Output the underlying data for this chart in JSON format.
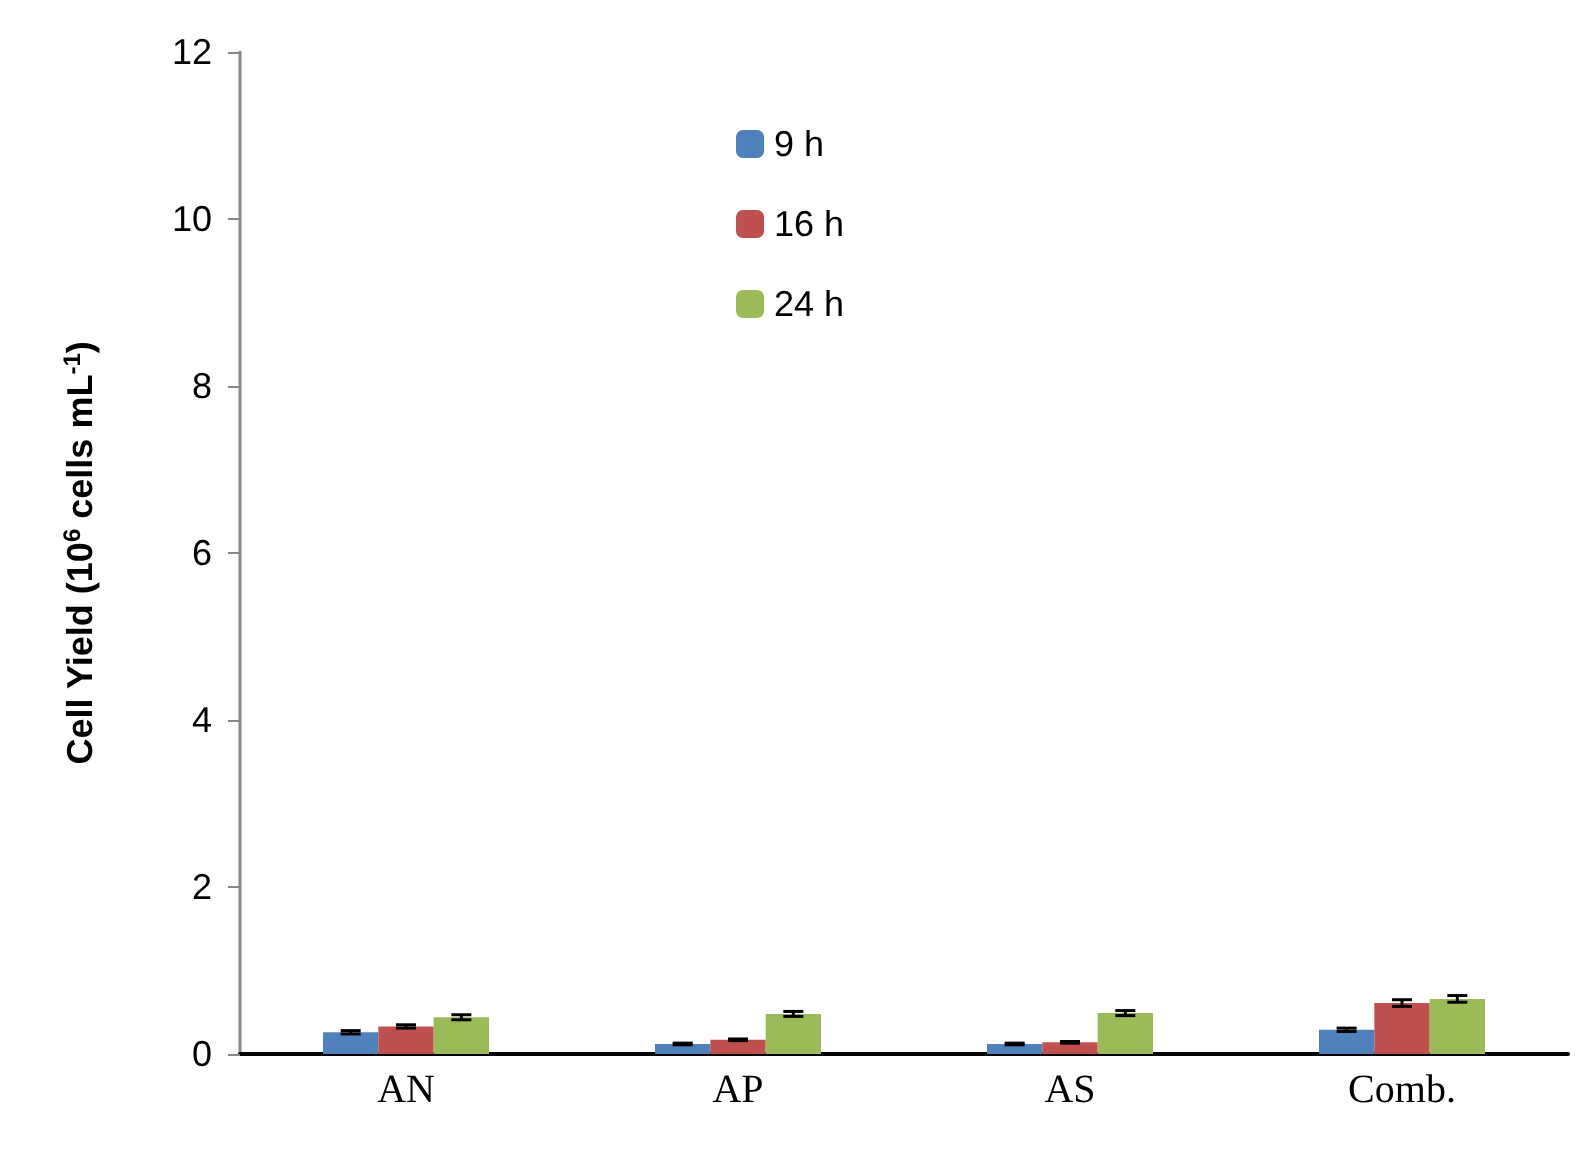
{
  "chart_data": {
    "type": "bar",
    "ylabel": "Cell Yield (10$^{6}$ cells mL$^{-1}$)",
    "categories": [
      "AN",
      "AP",
      "AS",
      "Comb."
    ],
    "ylim": [
      0,
      12
    ],
    "yticks": [
      0,
      2,
      4,
      6,
      8,
      10,
      12
    ],
    "legend": "top",
    "grid": false,
    "series": [
      {
        "name": "9 h",
        "color": "#4f81bd",
        "values": [
          0.26,
          0.12,
          0.12,
          0.29
        ],
        "errors": [
          0.02,
          0.01,
          0.01,
          0.02
        ]
      },
      {
        "name": "16 h",
        "color": "#c0504d",
        "values": [
          0.33,
          0.17,
          0.14,
          0.61
        ],
        "errors": [
          0.02,
          0.01,
          0.01,
          0.04
        ]
      },
      {
        "name": "24 h",
        "color": "#9bbb59",
        "values": [
          0.44,
          0.48,
          0.49,
          0.66
        ],
        "errors": [
          0.03,
          0.03,
          0.03,
          0.04
        ]
      }
    ]
  }
}
